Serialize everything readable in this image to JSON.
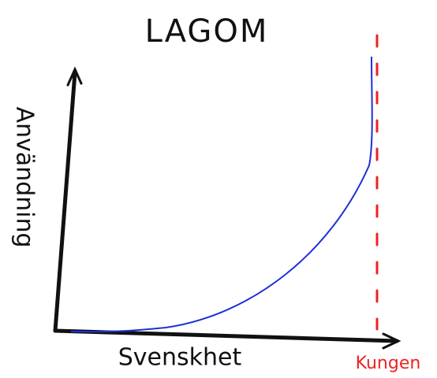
{
  "title": "LAGOM",
  "x_label": "Svenskhet",
  "y_label": "Användning",
  "annotation": "Kungen"
}
